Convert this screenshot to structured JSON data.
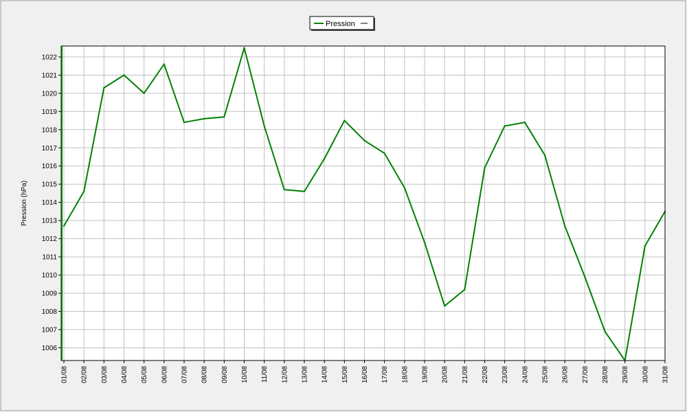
{
  "chart_data": {
    "type": "line",
    "title": "",
    "xlabel": "",
    "ylabel": "Pression (hPa)",
    "categories": [
      "01/08",
      "02/08",
      "03/08",
      "04/08",
      "05/08",
      "06/08",
      "07/08",
      "08/08",
      "09/08",
      "10/08",
      "11/08",
      "12/08",
      "13/08",
      "14/08",
      "15/08",
      "16/08",
      "17/08",
      "18/08",
      "19/08",
      "20/08",
      "21/08",
      "22/08",
      "23/08",
      "24/08",
      "25/08",
      "26/08",
      "27/08",
      "28/08",
      "29/08",
      "30/08",
      "31/08"
    ],
    "series": [
      {
        "name": "Pression",
        "color": "#008000",
        "values": [
          1012.7,
          1014.6,
          1020.3,
          1021.0,
          1020.0,
          1021.6,
          1018.4,
          1018.6,
          1018.7,
          1022.5,
          1018.2,
          1014.7,
          1014.6,
          1016.4,
          1018.5,
          1017.4,
          1016.7,
          1014.8,
          1011.8,
          1008.3,
          1009.2,
          1015.9,
          1018.2,
          1018.4,
          1016.6,
          1012.7,
          1009.9,
          1006.9,
          1005.3,
          1011.6,
          1013.5
        ]
      }
    ],
    "yticks": [
      1006,
      1007,
      1008,
      1009,
      1010,
      1011,
      1012,
      1013,
      1014,
      1015,
      1016,
      1017,
      1018,
      1019,
      1020,
      1021,
      1022
    ],
    "ylim": [
      1005.3,
      1022.6
    ],
    "grid": true,
    "legend_position": "top-center",
    "colors": {
      "background": "#f0f0f0",
      "plot_background": "#ffffff",
      "grid": "#c0c0c0",
      "line": "#008000"
    }
  }
}
